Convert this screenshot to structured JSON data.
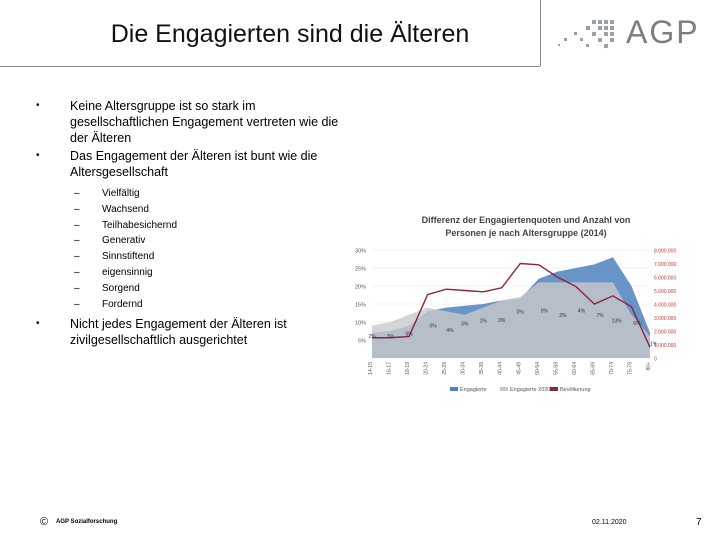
{
  "slide": {
    "title": "Die Engagierten sind die Älteren",
    "logo_text": "AGP"
  },
  "bullets": [
    {
      "text": "Keine Altersgruppe ist so stark im gesellschaftlichen Engagement vertreten wie die der Älteren"
    },
    {
      "text": "Das Engagement der Älteren ist bunt wie die Altersgesellschaft"
    },
    {
      "text": "Nicht jedes Engagement der Älteren ist zivilgesellschaftlich ausgerichtet"
    }
  ],
  "sub_items": [
    "Vielfältig",
    "Wachsend",
    "Teilhabesichernd",
    "Generativ",
    "Sinnstiftend",
    "eigensinnig",
    "Sorgend",
    "Fordernd"
  ],
  "footer": {
    "copyright": "©",
    "brand": "AGP Sozialforschung",
    "date": "02.11.2020",
    "page": "7"
  },
  "chart_data": {
    "type": "area",
    "title": "Differenz der Engagiertenquoten und Anzahl von Personen je nach Altersgruppe (2014)",
    "categories": [
      "14-15",
      "16-17",
      "18-19",
      "20-24",
      "25-29",
      "30-34",
      "35-39",
      "40-44",
      "45-49",
      "50-54",
      "55-59",
      "60-64",
      "65-69",
      "70-74",
      "75-79",
      "80+"
    ],
    "y_left_ticks": [
      "30%",
      "25%",
      "20%",
      "15%",
      "10%",
      "5%"
    ],
    "y_right_ticks": [
      "8.000.000",
      "7.000.000",
      "6.000.000",
      "5.000.000",
      "4.000.000",
      "3.000.000",
      "2.000.000",
      "1.000.000",
      "0"
    ],
    "ylim_left": [
      0,
      30
    ],
    "ylim_right": [
      0,
      8000000
    ],
    "series": [
      {
        "name": "Engagierte",
        "axis": "left",
        "color": "#4f81bd",
        "values": [
          7,
          7.5,
          9,
          13,
          14,
          14.5,
          15,
          16,
          16.5,
          22,
          24,
          25,
          26,
          28,
          20,
          7
        ]
      },
      {
        "name": "Engagierte 2020",
        "axis": "left",
        "color": "#c9c9c9",
        "values": [
          9,
          10,
          12,
          14,
          13,
          12,
          14,
          16,
          17,
          21,
          21,
          21,
          21,
          21,
          12,
          6
        ]
      },
      {
        "name": "Bevölkerung",
        "axis": "right",
        "color": "#8b2540",
        "values": [
          1500000,
          1500000,
          1600000,
          4700000,
          5100000,
          5000000,
          4900000,
          5200000,
          7000000,
          6900000,
          6000000,
          5300000,
          4000000,
          4600000,
          3800000,
          800000
        ]
      }
    ],
    "data_labels": [
      {
        "text": "2%",
        "cat": 0,
        "y": 5.5
      },
      {
        "text": "3%",
        "cat": 1,
        "y": 5.5
      },
      {
        "text": "6%",
        "cat": 2,
        "y": 6.2
      },
      {
        "text": "0%",
        "cat": 3.3,
        "y": 8.5
      },
      {
        "text": "4%",
        "cat": 4.2,
        "y": 7.2
      },
      {
        "text": "3%",
        "cat": 5,
        "y": 9
      },
      {
        "text": "1%",
        "cat": 6,
        "y": 9.8
      },
      {
        "text": "3%",
        "cat": 7,
        "y": 10
      },
      {
        "text": "0%",
        "cat": 8,
        "y": 12.4
      },
      {
        "text": "0%",
        "cat": 9.3,
        "y": 12.6
      },
      {
        "text": "2%",
        "cat": 10.3,
        "y": 11.4
      },
      {
        "text": "4%",
        "cat": 11.3,
        "y": 12.6
      },
      {
        "text": "7%",
        "cat": 12.3,
        "y": 11.4
      },
      {
        "text": "13%",
        "cat": 13.2,
        "y": 9.8
      },
      {
        "text": "6%",
        "cat": 14.3,
        "y": 9.2
      },
      {
        "text": "1%",
        "cat": 15.2,
        "y": 3.5
      }
    ],
    "legend": {
      "position": "bottom",
      "entries": [
        "Engagierte",
        "Engagierte 2020",
        "Bevölkerung"
      ]
    }
  }
}
